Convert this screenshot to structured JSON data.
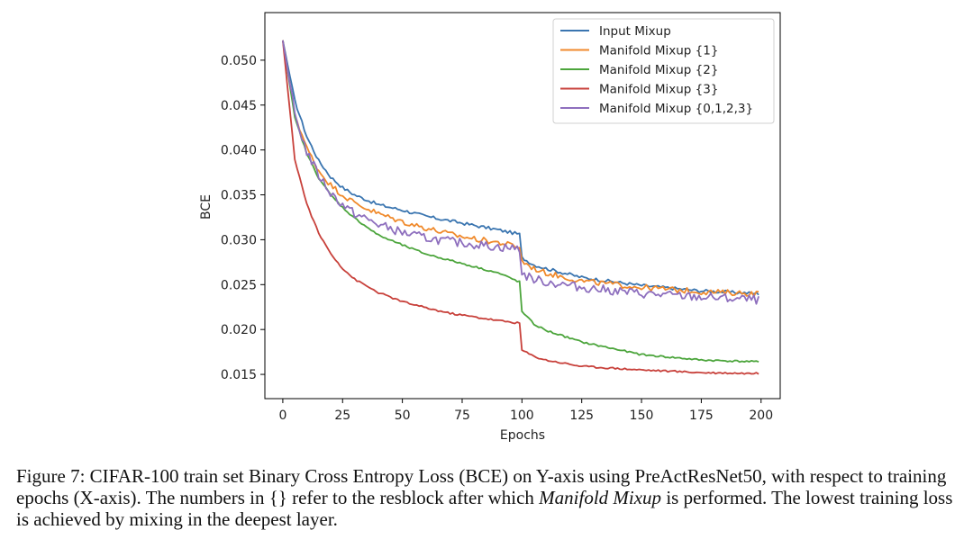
{
  "chart_data": {
    "type": "line",
    "title": "",
    "xlabel": "Epochs",
    "ylabel": "BCE",
    "xlim": [
      -7.5,
      208
    ],
    "ylim": [
      0.0123,
      0.0553
    ],
    "xticks": [
      0,
      25,
      50,
      75,
      100,
      125,
      150,
      175,
      200
    ],
    "yticks": [
      0.015,
      0.02,
      0.025,
      0.03,
      0.035,
      0.04,
      0.045,
      0.05
    ],
    "ytick_labels": [
      "0.015",
      "0.020",
      "0.025",
      "0.030",
      "0.035",
      "0.040",
      "0.045",
      "0.050"
    ],
    "legend_position": "top-right",
    "grid": false,
    "series": [
      {
        "name": "Input Mixup",
        "color": "#3a75b0",
        "x": [
          0,
          5,
          10,
          15,
          20,
          25,
          30,
          40,
          50,
          60,
          70,
          80,
          90,
          99,
          100,
          105,
          110,
          125,
          150,
          175,
          199
        ],
        "y": [
          0.0522,
          0.0455,
          0.0415,
          0.0388,
          0.037,
          0.0358,
          0.035,
          0.0339,
          0.0333,
          0.0326,
          0.0321,
          0.0316,
          0.0311,
          0.0306,
          0.028,
          0.0272,
          0.0268,
          0.0258,
          0.0249,
          0.0243,
          0.024
        ],
        "noise": 0.00018
      },
      {
        "name": "Manifold Mixup {1}",
        "color": "#f08a2c",
        "x": [
          0,
          5,
          10,
          15,
          20,
          25,
          30,
          40,
          50,
          60,
          70,
          80,
          90,
          99,
          100,
          105,
          110,
          125,
          150,
          175,
          199
        ],
        "y": [
          0.0522,
          0.044,
          0.0402,
          0.0377,
          0.0361,
          0.035,
          0.0341,
          0.0329,
          0.032,
          0.0313,
          0.0306,
          0.0301,
          0.0297,
          0.0292,
          0.0276,
          0.0268,
          0.0263,
          0.0254,
          0.0247,
          0.0242,
          0.024
        ],
        "noise": 0.00032
      },
      {
        "name": "Manifold Mixup {2}",
        "color": "#4ca53c",
        "x": [
          0,
          5,
          10,
          15,
          20,
          25,
          30,
          40,
          50,
          60,
          70,
          80,
          90,
          99,
          100,
          105,
          110,
          125,
          150,
          175,
          199
        ],
        "y": [
          0.0522,
          0.0436,
          0.0396,
          0.0369,
          0.035,
          0.0336,
          0.0324,
          0.0305,
          0.0294,
          0.0284,
          0.0277,
          0.027,
          0.0263,
          0.0253,
          0.022,
          0.0206,
          0.0199,
          0.0186,
          0.0172,
          0.0166,
          0.0164
        ],
        "noise": 0.0001
      },
      {
        "name": "Manifold Mixup {3}",
        "color": "#c8413b",
        "x": [
          0,
          5,
          10,
          15,
          20,
          25,
          30,
          40,
          50,
          60,
          70,
          80,
          90,
          99,
          100,
          105,
          110,
          125,
          150,
          175,
          199
        ],
        "y": [
          0.0522,
          0.039,
          0.034,
          0.0307,
          0.0285,
          0.0268,
          0.0256,
          0.0241,
          0.0231,
          0.0224,
          0.0218,
          0.0214,
          0.021,
          0.0207,
          0.0177,
          0.017,
          0.0166,
          0.0159,
          0.0155,
          0.0152,
          0.0151
        ],
        "noise": 0.0001
      },
      {
        "name": "Manifold Mixup {0,1,2,3}",
        "color": "#8e6fbe",
        "x": [
          0,
          5,
          10,
          15,
          20,
          25,
          30,
          40,
          50,
          60,
          70,
          80,
          90,
          99,
          100,
          105,
          110,
          125,
          150,
          175,
          199
        ],
        "y": [
          0.0522,
          0.044,
          0.0398,
          0.0372,
          0.0352,
          0.0339,
          0.0329,
          0.0317,
          0.0308,
          0.0302,
          0.0298,
          0.0295,
          0.0292,
          0.029,
          0.0262,
          0.0256,
          0.0253,
          0.0247,
          0.024,
          0.0236,
          0.0233
        ],
        "noise": 0.0005
      }
    ]
  },
  "caption": {
    "prefix": "Figure 7: CIFAR-100 train set Binary Cross Entropy Loss (BCE) on Y-axis using PreActResNet50, with respect to training epochs (X-axis). The numbers in {} refer to the resblock after which ",
    "emph": "Manifold Mixup",
    "suffix": " is performed. The lowest training loss is achieved by mixing in the deepest layer."
  }
}
